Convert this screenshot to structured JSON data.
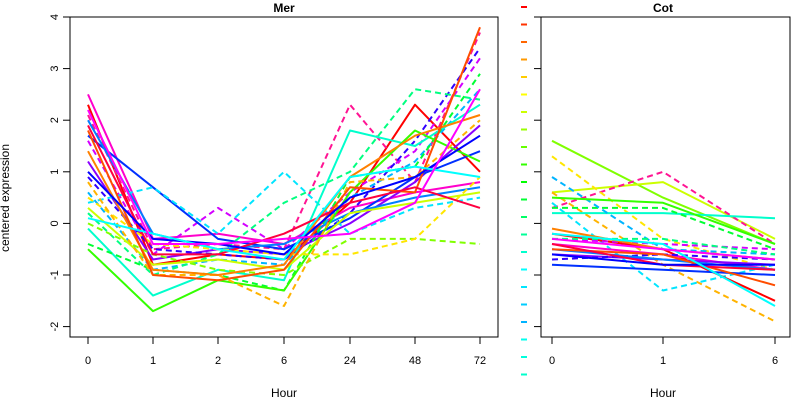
{
  "chart_data": [
    {
      "type": "line",
      "title": "Mer",
      "xlabel": "Hour",
      "ylabel": "centered expression",
      "categories": [
        "0",
        "1",
        "2",
        "6",
        "24",
        "48",
        "72"
      ],
      "yticks": [
        -2,
        -1,
        0,
        1,
        2,
        3,
        4
      ],
      "ylim": [
        -2.2,
        4
      ],
      "grid": false,
      "series": [
        {
          "color": "#ff0000",
          "dash": false,
          "values": [
            2.3,
            -0.8,
            -0.6,
            -0.7,
            0.4,
            2.3,
            1.0
          ]
        },
        {
          "color": "#ff1493",
          "dash": true,
          "values": [
            2.1,
            -0.5,
            -0.4,
            -0.5,
            2.3,
            0.8,
            3.7
          ]
        },
        {
          "color": "#ff00cc",
          "dash": false,
          "values": [
            2.5,
            -0.3,
            -0.2,
            -0.4,
            0.3,
            0.6,
            0.8
          ]
        },
        {
          "color": "#d300ff",
          "dash": true,
          "values": [
            1.6,
            -0.6,
            0.3,
            -0.5,
            0.6,
            1.4,
            3.2
          ]
        },
        {
          "color": "#8a00ff",
          "dash": false,
          "values": [
            1.2,
            -0.7,
            -0.5,
            -0.6,
            0.0,
            0.8,
            1.9
          ]
        },
        {
          "color": "#3000ff",
          "dash": true,
          "values": [
            0.9,
            -0.5,
            -0.6,
            -0.7,
            0.2,
            1.6,
            3.4
          ]
        },
        {
          "color": "#0030ff",
          "dash": false,
          "values": [
            1.7,
            0.7,
            -0.3,
            -0.5,
            0.1,
            0.9,
            1.4
          ]
        },
        {
          "color": "#0080ff",
          "dash": false,
          "values": [
            2.0,
            -0.2,
            -0.5,
            -0.4,
            0.2,
            0.5,
            0.7
          ]
        },
        {
          "color": "#00b4ff",
          "dash": true,
          "values": [
            0.6,
            -0.9,
            -0.7,
            -0.8,
            0.5,
            1.2,
            2.6
          ]
        },
        {
          "color": "#00e5ff",
          "dash": true,
          "values": [
            0.4,
            0.7,
            -0.2,
            1.0,
            -0.2,
            0.3,
            0.5
          ]
        },
        {
          "color": "#00ffcc",
          "dash": false,
          "values": [
            -0.1,
            -1.4,
            -0.9,
            -1.1,
            1.8,
            1.5,
            2.3
          ]
        },
        {
          "color": "#00ff80",
          "dash": true,
          "values": [
            0.2,
            -1.0,
            -0.6,
            0.4,
            1.0,
            2.6,
            2.4
          ]
        },
        {
          "color": "#00ff33",
          "dash": true,
          "values": [
            -0.4,
            -0.9,
            -1.0,
            -1.3,
            0.9,
            1.1,
            2.9
          ]
        },
        {
          "color": "#33ff00",
          "dash": false,
          "values": [
            -0.5,
            -1.7,
            -1.1,
            -1.3,
            0.6,
            1.8,
            1.2
          ]
        },
        {
          "color": "#80ff00",
          "dash": true,
          "values": [
            0.0,
            -0.6,
            -0.9,
            -1.0,
            -0.3,
            -0.3,
            -0.4
          ]
        },
        {
          "color": "#ccff00",
          "dash": false,
          "values": [
            0.3,
            -0.8,
            -0.7,
            -0.9,
            0.2,
            0.4,
            0.6
          ]
        },
        {
          "color": "#ffe600",
          "dash": true,
          "values": [
            0.5,
            -0.4,
            -0.5,
            -0.6,
            -0.6,
            -0.3,
            0.9
          ]
        },
        {
          "color": "#ffb300",
          "dash": true,
          "values": [
            0.8,
            -1.0,
            -1.0,
            -1.6,
            0.8,
            0.9,
            2.0
          ]
        },
        {
          "color": "#ff8000",
          "dash": false,
          "values": [
            1.4,
            -0.9,
            -1.0,
            -0.8,
            0.9,
            1.7,
            2.1
          ]
        },
        {
          "color": "#ff4d00",
          "dash": false,
          "values": [
            1.8,
            -1.0,
            -1.1,
            -0.9,
            0.7,
            0.6,
            3.8
          ]
        },
        {
          "color": "#ff0040",
          "dash": false,
          "values": [
            1.9,
            -0.6,
            -0.6,
            -0.2,
            0.4,
            0.7,
            0.3
          ]
        },
        {
          "color": "#0000ff",
          "dash": false,
          "values": [
            1.0,
            -0.3,
            -0.4,
            -0.6,
            0.5,
            0.9,
            1.7
          ]
        },
        {
          "color": "#00ffff",
          "dash": false,
          "values": [
            0.1,
            -0.2,
            -0.5,
            -0.7,
            0.9,
            1.1,
            0.9
          ]
        },
        {
          "color": "#ff00ff",
          "dash": false,
          "values": [
            2.2,
            -0.4,
            -0.4,
            -0.3,
            -0.2,
            0.4,
            2.6
          ]
        }
      ]
    },
    {
      "type": "line",
      "title": "Cot",
      "xlabel": "Hour",
      "ylabel": "",
      "categories": [
        "0",
        "1",
        "6"
      ],
      "ylim": [
        -2.2,
        4
      ],
      "grid": false,
      "series": [
        {
          "color": "#80ff00",
          "dash": false,
          "values": [
            1.6,
            0.5,
            -0.4
          ]
        },
        {
          "color": "#ccff00",
          "dash": false,
          "values": [
            0.6,
            0.8,
            -0.3
          ]
        },
        {
          "color": "#ff1493",
          "dash": true,
          "values": [
            0.3,
            1.0,
            -0.4
          ]
        },
        {
          "color": "#ffe600",
          "dash": true,
          "values": [
            1.3,
            -0.3,
            -0.9
          ]
        },
        {
          "color": "#ffb300",
          "dash": true,
          "values": [
            0.6,
            -0.8,
            -1.9
          ]
        },
        {
          "color": "#00e5ff",
          "dash": true,
          "values": [
            0.4,
            -1.3,
            -0.8
          ]
        },
        {
          "color": "#00ffcc",
          "dash": false,
          "values": [
            0.2,
            0.2,
            0.1
          ]
        },
        {
          "color": "#00ff33",
          "dash": true,
          "values": [
            0.3,
            0.3,
            -0.5
          ]
        },
        {
          "color": "#ff0000",
          "dash": false,
          "values": [
            -0.2,
            -0.5,
            -1.5
          ]
        },
        {
          "color": "#ff00cc",
          "dash": false,
          "values": [
            -0.4,
            -0.6,
            -0.9
          ]
        },
        {
          "color": "#d300ff",
          "dash": true,
          "values": [
            -0.3,
            -0.4,
            -0.5
          ]
        },
        {
          "color": "#8a00ff",
          "dash": false,
          "values": [
            -0.6,
            -0.7,
            -0.8
          ]
        },
        {
          "color": "#3000ff",
          "dash": true,
          "values": [
            -0.7,
            -0.6,
            -0.7
          ]
        },
        {
          "color": "#0030ff",
          "dash": false,
          "values": [
            -0.8,
            -0.9,
            -1.0
          ]
        },
        {
          "color": "#0080ff",
          "dash": false,
          "values": [
            -0.5,
            -0.7,
            -0.9
          ]
        },
        {
          "color": "#00b4ff",
          "dash": true,
          "values": [
            0.9,
            -0.5,
            -0.6
          ]
        },
        {
          "color": "#00ff80",
          "dash": true,
          "values": [
            -0.3,
            -0.3,
            -0.6
          ]
        },
        {
          "color": "#ff8000",
          "dash": false,
          "values": [
            -0.1,
            -0.5,
            -0.7
          ]
        },
        {
          "color": "#ff4d00",
          "dash": false,
          "values": [
            -0.5,
            -0.6,
            -1.2
          ]
        },
        {
          "color": "#ff0040",
          "dash": false,
          "values": [
            -0.4,
            -0.8,
            -0.9
          ]
        },
        {
          "color": "#0000ff",
          "dash": false,
          "values": [
            -0.6,
            -0.8,
            -0.8
          ]
        },
        {
          "color": "#00ffff",
          "dash": false,
          "values": [
            -0.2,
            -0.4,
            -1.6
          ]
        },
        {
          "color": "#ff00ff",
          "dash": false,
          "values": [
            -0.3,
            -0.5,
            -0.7
          ]
        },
        {
          "color": "#33ff00",
          "dash": false,
          "values": [
            0.5,
            0.4,
            -0.4
          ]
        }
      ]
    }
  ],
  "color_key": [
    "#ff0000",
    "#ff3300",
    "#ff6600",
    "#ff9900",
    "#ffcc00",
    "#ffff00",
    "#ccff00",
    "#99ff00",
    "#66ff00",
    "#33ff00",
    "#00ff00",
    "#00ff33",
    "#00ff66",
    "#00ff99",
    "#00ffcc",
    "#00ffff",
    "#00e6ff",
    "#00ccff",
    "#00b3ff",
    "#00ffee",
    "#00ffdd",
    "#00ffcc"
  ]
}
